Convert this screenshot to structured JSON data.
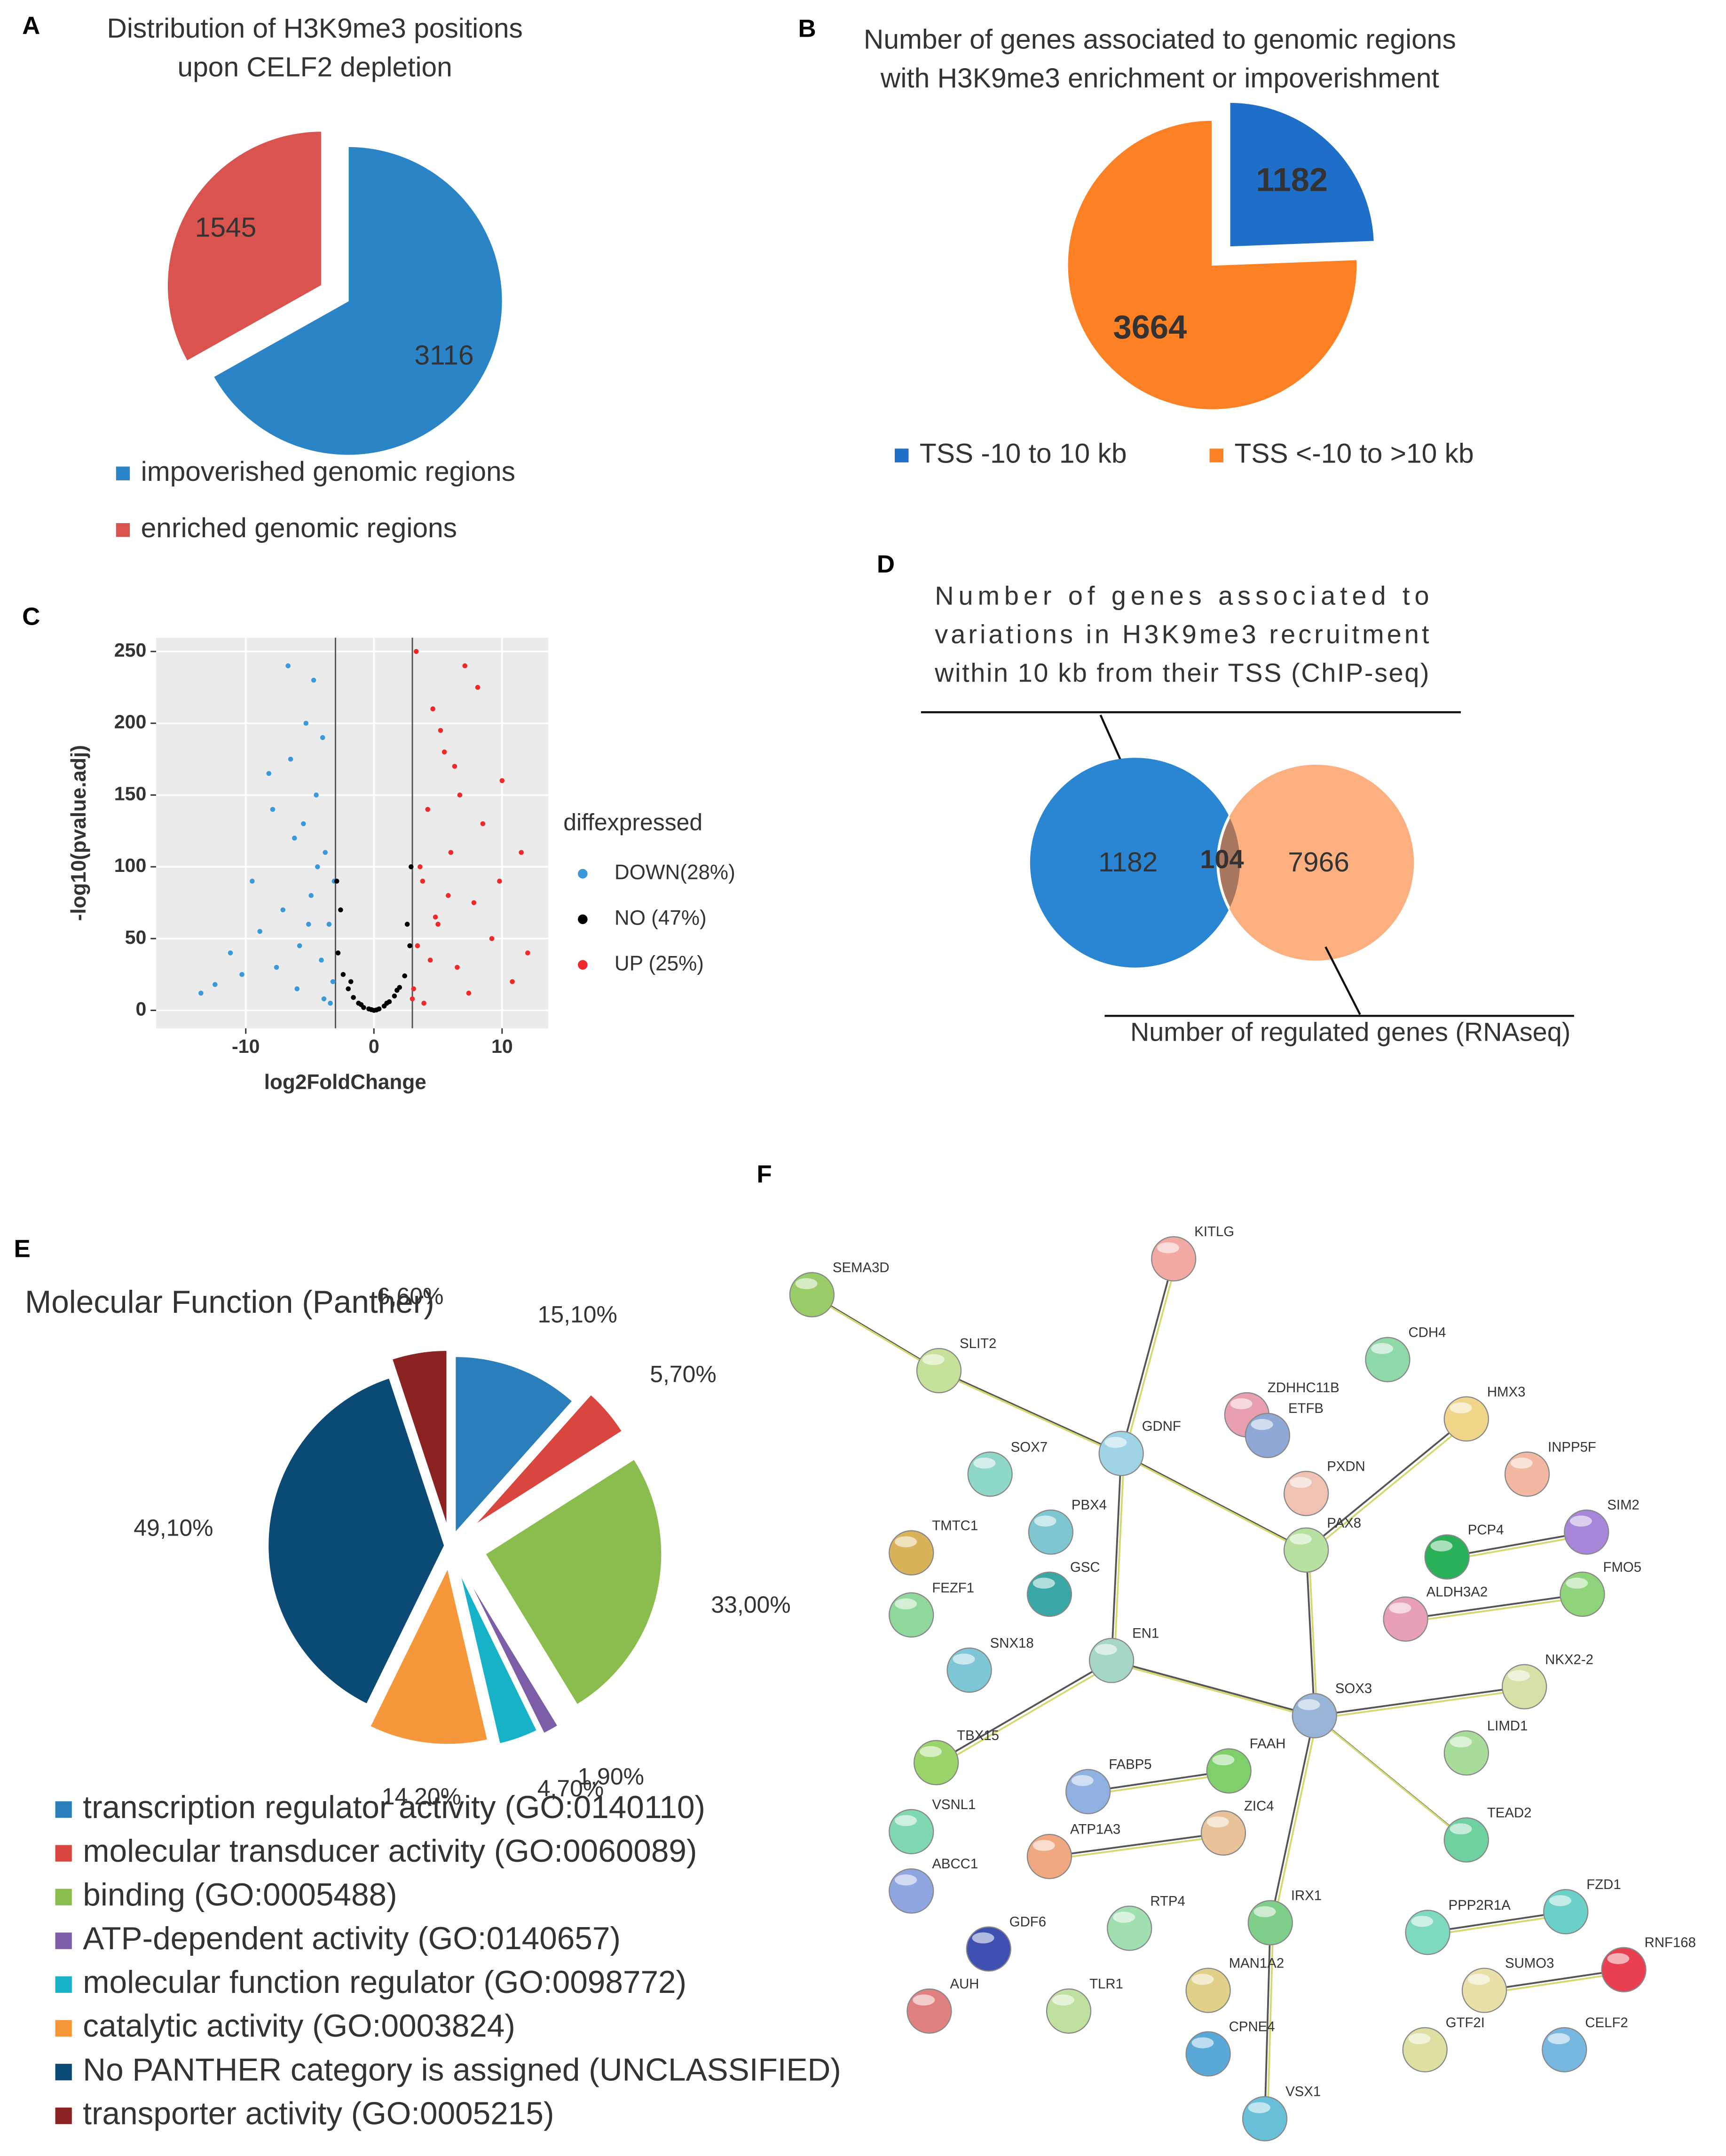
{
  "chart_data": [
    {
      "type": "pie",
      "panel": "A",
      "title": [
        "Distribution of H3K9me3 positions",
        "upon CELF2 depletion"
      ],
      "categories": [
        "impoverished genomic regions",
        "enriched genomic regions"
      ],
      "values": [
        3116,
        1545
      ],
      "colors": [
        "#2b84c6",
        "#d9534f"
      ]
    },
    {
      "type": "pie",
      "panel": "B",
      "title": [
        "Number of genes  associated to genomic regions",
        "with H3K9me3 enrichment or impoverishment"
      ],
      "categories": [
        "TSS -10 to 10 kb",
        "TSS <-10 to >10 kb"
      ],
      "values": [
        1182,
        3664
      ],
      "colors": [
        "#1f6fc9",
        "#fb8124"
      ]
    },
    {
      "type": "scatter",
      "panel": "C",
      "xlabel": "log2FoldChange",
      "ylabel": "-log10(pvalue.adj)",
      "xlim": [
        -17,
        13.6
      ],
      "ylim": [
        -12.5,
        259.6
      ],
      "xticks": [
        -10,
        0,
        10
      ],
      "yticks": [
        0,
        50,
        100,
        150,
        200,
        250
      ],
      "thresholds": [
        -3,
        3
      ],
      "grid": true,
      "legend_title": "diffexpressed",
      "series": [
        {
          "name": "DOWN(28%)",
          "color": "#3a9ad9",
          "x": [
            -3.2,
            -3.5,
            -3.8,
            -4.1,
            -4.5,
            -4.9,
            -5.3,
            -5.8,
            -6.2,
            -6.7,
            -7.1,
            -7.6,
            -8.2,
            -8.9,
            -9.5,
            -10.3,
            -11.2,
            -12.4,
            -13.5,
            -3.4,
            -4.0,
            -4.7,
            -5.5,
            -6.0,
            -3.9,
            -4.4,
            -5.1,
            -7.9,
            -3.1,
            -6.5
          ],
          "y": [
            20,
            60,
            110,
            35,
            150,
            80,
            200,
            45,
            120,
            240,
            70,
            30,
            165,
            55,
            90,
            25,
            40,
            18,
            12,
            5,
            190,
            230,
            130,
            15,
            8,
            100,
            60,
            140,
            90,
            175
          ]
        },
        {
          "name": "NO (47%)",
          "color": "#000000",
          "x": [
            -2.8,
            -2.4,
            -2.0,
            -1.6,
            -1.2,
            -0.8,
            -0.4,
            0,
            0.4,
            0.8,
            1.2,
            1.6,
            2.0,
            2.4,
            2.8,
            -2.6,
            -1.8,
            -1.0,
            1.0,
            1.8,
            2.6,
            -2.9,
            2.9,
            -0.2,
            0.2
          ],
          "y": [
            40,
            25,
            15,
            9,
            5,
            2,
            1,
            0,
            1,
            3,
            6,
            10,
            16,
            24,
            45,
            70,
            20,
            4,
            5,
            14,
            60,
            90,
            100,
            0.5,
            0.3
          ]
        },
        {
          "name": "UP (25%)",
          "color": "#f0292b",
          "x": [
            3.1,
            3.4,
            3.8,
            4.2,
            4.6,
            5.0,
            5.5,
            6.0,
            6.5,
            7.1,
            7.8,
            8.5,
            9.2,
            10.0,
            10.8,
            11.5,
            3.3,
            3.9,
            4.4,
            5.2,
            5.8,
            6.7,
            7.4,
            8.1,
            3.6,
            4.8,
            9.8,
            12.0,
            3.0,
            6.3
          ],
          "y": [
            15,
            45,
            90,
            140,
            210,
            60,
            180,
            110,
            30,
            240,
            75,
            130,
            50,
            160,
            20,
            110,
            250,
            5,
            35,
            195,
            80,
            150,
            12,
            225,
            100,
            65,
            90,
            40,
            8,
            170
          ]
        }
      ]
    },
    {
      "type": "venn",
      "panel": "D",
      "title": [
        "Number of genes associated to",
        "variations in H3K9me3 recruitment",
        "within 10 kb from their TSS (ChIP-seq)"
      ],
      "sets": [
        {
          "name": "Number of regulated genes (RNAseq)",
          "value": 7966,
          "color": "#fdb07f"
        },
        {
          "value": 1182,
          "color": "#2a86d3"
        }
      ],
      "intersection": 104
    },
    {
      "type": "pie",
      "panel": "E",
      "title": [
        "Molecular Function (Panther)"
      ],
      "categories": [
        "transcription regulator activity (GO:0140110)",
        "molecular transducer activity (GO:0060089)",
        "binding (GO:0005488)",
        "ATP-dependent activity (GO:0140657)",
        "molecular function regulator (GO:0098772)",
        "catalytic activity (GO:0003824)",
        "No PANTHER category is assigned (UNCLASSIFIED)",
        "transporter activity (GO:0005215)"
      ],
      "values": [
        15.1,
        5.7,
        33.0,
        1.9,
        4.7,
        14.2,
        49.1,
        6.6
      ],
      "value_labels": [
        "15,10%",
        "5,70%",
        "33,00%",
        "1,90%",
        "4,70%",
        "14,20%",
        "49,10%",
        "6,60%"
      ],
      "colors": [
        "#2a7fba",
        "#d9463f",
        "#8bbd4e",
        "#7b5ea7",
        "#17b2c8",
        "#f5973a",
        "#0b4a74",
        "#8b2323"
      ]
    },
    {
      "type": "network",
      "panel": "F",
      "nodes": [
        "SEMA3D",
        "SLIT2",
        "KITLG",
        "CDH4",
        "ZDHHC11B",
        "GDNF",
        "ETFB",
        "HMX3",
        "SOX7",
        "INPP5F",
        "PXDN",
        "PBX4",
        "SIM2",
        "TMTC1",
        "PAX8",
        "PCP4",
        "GSC",
        "FMO5",
        "FEZF1",
        "ALDH3A2",
        "EN1",
        "SNX18",
        "NKX2-2",
        "SOX3",
        "TBX15",
        "LIMD1",
        "FAAH",
        "FABP5",
        "TEAD2",
        "VSNL1",
        "ZIC4",
        "ATP1A3",
        "ABCC1",
        "RTP4",
        "IRX1",
        "PPP2R1A",
        "FZD1",
        "GDF6",
        "RNF168",
        "MAN1A2",
        "TLR1",
        "SUMO3",
        "AUH",
        "CPNE4",
        "GTF2I",
        "CELF2",
        "VSX1"
      ]
    }
  ]
}
